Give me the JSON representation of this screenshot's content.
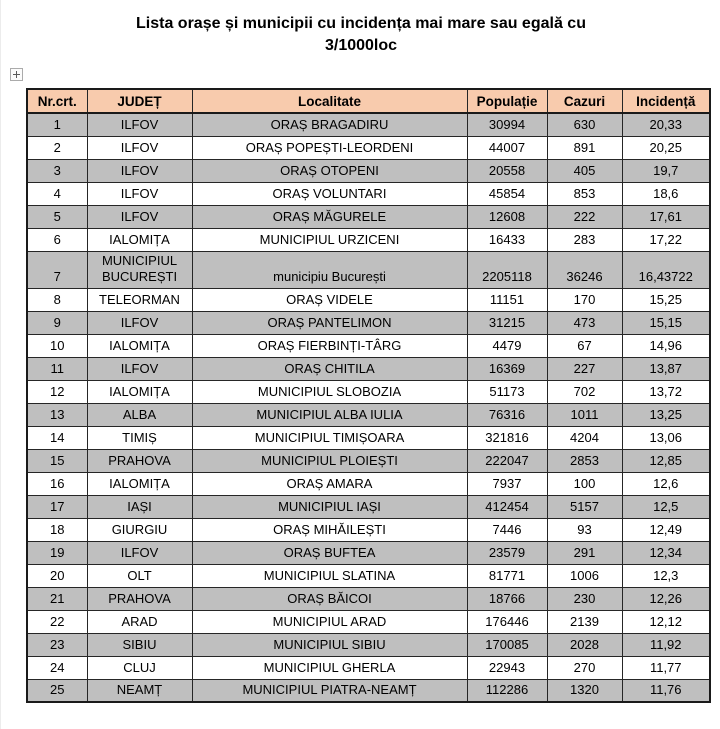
{
  "page": {
    "title_line1": "Lista orașe și municipii cu incidența mai mare sau egală cu",
    "title_line2": "3/1000loc"
  },
  "icons": {
    "table_handle": "move-cross-plus"
  },
  "colors": {
    "header_bg": "#F8CBAD",
    "shaded_row_bg": "#BFBFBF",
    "plain_row_bg": "#FFFFFF",
    "grid_border": "#262626",
    "text": "#000000"
  },
  "table": {
    "headers": [
      "Nr.crt.",
      "JUDEȚ",
      "Localitate",
      "Populație",
      "Cazuri",
      "Incidență"
    ],
    "rows": [
      [
        "1",
        "ILFOV",
        "ORAȘ BRAGADIRU",
        "30994",
        "630",
        "20,33"
      ],
      [
        "2",
        "ILFOV",
        "ORAȘ POPEȘTI-LEORDENI",
        "44007",
        "891",
        "20,25"
      ],
      [
        "3",
        "ILFOV",
        "ORAȘ OTOPENI",
        "20558",
        "405",
        "19,7"
      ],
      [
        "4",
        "ILFOV",
        "ORAȘ VOLUNTARI",
        "45854",
        "853",
        "18,6"
      ],
      [
        "5",
        "ILFOV",
        "ORAȘ MĂGURELE",
        "12608",
        "222",
        "17,61"
      ],
      [
        "6",
        "IALOMIȚA",
        "MUNICIPIUL URZICENI",
        "16433",
        "283",
        "17,22"
      ],
      [
        "7",
        "MUNICIPIUL BUCUREȘTI",
        "municipiu București",
        "2205118",
        "36246",
        "16,43722"
      ],
      [
        "8",
        "TELEORMAN",
        "ORAȘ VIDELE",
        "11151",
        "170",
        "15,25"
      ],
      [
        "9",
        "ILFOV",
        "ORAȘ PANTELIMON",
        "31215",
        "473",
        "15,15"
      ],
      [
        "10",
        "IALOMIȚA",
        "ORAȘ FIERBINȚI-TÂRG",
        "4479",
        "67",
        "14,96"
      ],
      [
        "11",
        "ILFOV",
        "ORAȘ CHITILA",
        "16369",
        "227",
        "13,87"
      ],
      [
        "12",
        "IALOMIȚA",
        "MUNICIPIUL SLOBOZIA",
        "51173",
        "702",
        "13,72"
      ],
      [
        "13",
        "ALBA",
        "MUNICIPIUL ALBA IULIA",
        "76316",
        "1011",
        "13,25"
      ],
      [
        "14",
        "TIMIȘ",
        "MUNICIPIUL TIMIȘOARA",
        "321816",
        "4204",
        "13,06"
      ],
      [
        "15",
        "PRAHOVA",
        "MUNICIPIUL PLOIEȘTI",
        "222047",
        "2853",
        "12,85"
      ],
      [
        "16",
        "IALOMIȚA",
        "ORAȘ AMARA",
        "7937",
        "100",
        "12,6"
      ],
      [
        "17",
        "IAȘI",
        "MUNICIPIUL IAȘI",
        "412454",
        "5157",
        "12,5"
      ],
      [
        "18",
        "GIURGIU",
        "ORAȘ MIHĂILEȘTI",
        "7446",
        "93",
        "12,49"
      ],
      [
        "19",
        "ILFOV",
        "ORAȘ BUFTEA",
        "23579",
        "291",
        "12,34"
      ],
      [
        "20",
        "OLT",
        "MUNICIPIUL SLATINA",
        "81771",
        "1006",
        "12,3"
      ],
      [
        "21",
        "PRAHOVA",
        "ORAȘ BĂICOI",
        "18766",
        "230",
        "12,26"
      ],
      [
        "22",
        "ARAD",
        "MUNICIPIUL ARAD",
        "176446",
        "2139",
        "12,12"
      ],
      [
        "23",
        "SIBIU",
        "MUNICIPIUL SIBIU",
        "170085",
        "2028",
        "11,92"
      ],
      [
        "24",
        "CLUJ",
        "MUNICIPIUL GHERLA",
        "22943",
        "270",
        "11,77"
      ],
      [
        "25",
        "NEAMȚ",
        "MUNICIPIUL PIATRA-NEAMȚ",
        "112286",
        "1320",
        "11,76"
      ]
    ],
    "cell_names": [
      "row-number-cell",
      "judet-cell",
      "localitate-cell",
      "populatie-cell",
      "cazuri-cell",
      "incidenta-cell"
    ]
  }
}
